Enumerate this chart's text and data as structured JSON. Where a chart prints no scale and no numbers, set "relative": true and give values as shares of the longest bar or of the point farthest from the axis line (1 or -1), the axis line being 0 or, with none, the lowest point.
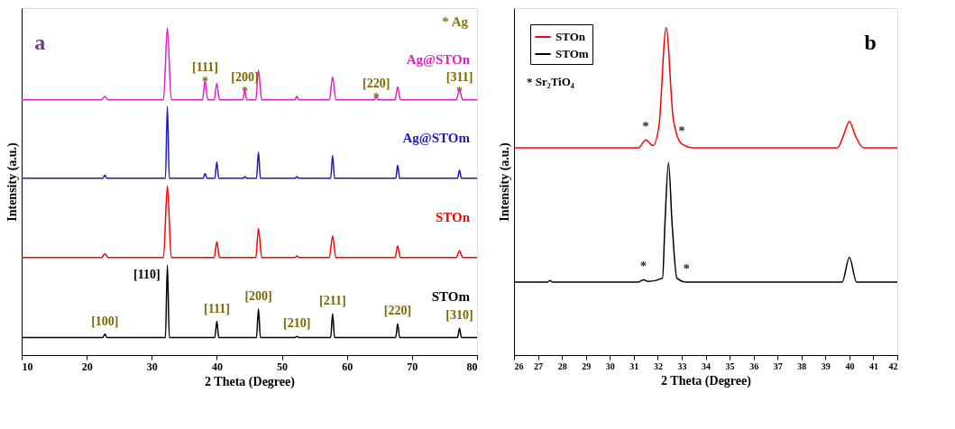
{
  "chart_data": [
    {
      "type": "line",
      "title": "a",
      "xlabel": "2 Theta (Degree)",
      "ylabel": "Intensity (a.u.)",
      "relative": true,
      "legend": false,
      "tick_labels": "x",
      "grid": false,
      "xlim": [
        10,
        80
      ],
      "xticks": [
        10,
        20,
        30,
        40,
        50,
        60,
        70,
        80
      ],
      "series": [
        {
          "name": "Ag@STOn",
          "color": "#e020c0",
          "x": [
            10,
            22.3,
            22.8,
            23.3,
            31.8,
            32.4,
            33.0,
            37.8,
            38.2,
            38.6,
            39.6,
            40.0,
            40.4,
            44.0,
            44.3,
            44.6,
            46.0,
            46.4,
            46.9,
            52.0,
            52.3,
            52.6,
            57.3,
            57.8,
            58.3,
            64.2,
            64.5,
            64.8,
            67.4,
            67.8,
            68.2,
            76.8,
            77.3,
            77.8,
            80
          ],
          "values": [
            0.78,
            0.78,
            0.79,
            0.78,
            0.78,
            1.0,
            0.78,
            0.78,
            0.84,
            0.78,
            0.78,
            0.83,
            0.78,
            0.78,
            0.81,
            0.78,
            0.78,
            0.87,
            0.78,
            0.78,
            0.79,
            0.78,
            0.78,
            0.85,
            0.78,
            0.78,
            0.79,
            0.78,
            0.78,
            0.82,
            0.78,
            0.78,
            0.81,
            0.78,
            0.78
          ]
        },
        {
          "name": "Ag@STOm",
          "color": "#1a1ac0",
          "x": [
            10,
            22.5,
            22.8,
            23.1,
            32.1,
            32.4,
            32.7,
            37.9,
            38.2,
            38.5,
            39.7,
            40.0,
            40.3,
            44.0,
            44.3,
            44.6,
            46.1,
            46.4,
            46.7,
            52.0,
            52.3,
            52.6,
            57.5,
            57.8,
            58.1,
            67.5,
            67.8,
            68.1,
            77.0,
            77.3,
            77.6,
            80
          ],
          "values": [
            0.54,
            0.54,
            0.55,
            0.54,
            0.54,
            0.76,
            0.54,
            0.54,
            0.555,
            0.54,
            0.54,
            0.59,
            0.54,
            0.54,
            0.545,
            0.54,
            0.54,
            0.62,
            0.54,
            0.54,
            0.545,
            0.54,
            0.54,
            0.61,
            0.54,
            0.54,
            0.58,
            0.54,
            0.54,
            0.565,
            0.54,
            0.54
          ]
        },
        {
          "name": "STOn",
          "color": "#ff0000",
          "x": [
            10,
            22.3,
            22.8,
            23.3,
            31.8,
            32.4,
            33.0,
            39.6,
            40.0,
            40.4,
            46.0,
            46.4,
            46.9,
            52.0,
            52.3,
            52.6,
            57.3,
            57.8,
            58.3,
            67.4,
            67.8,
            68.2,
            76.8,
            77.3,
            77.8,
            80
          ],
          "values": [
            0.298,
            0.298,
            0.31,
            0.298,
            0.298,
            0.517,
            0.298,
            0.298,
            0.346,
            0.298,
            0.298,
            0.387,
            0.298,
            0.298,
            0.303,
            0.298,
            0.298,
            0.364,
            0.298,
            0.298,
            0.334,
            0.298,
            0.298,
            0.319,
            0.298,
            0.298
          ]
        },
        {
          "name": "STOm",
          "color": "#000000",
          "x": [
            10,
            22.5,
            22.8,
            23.1,
            32.1,
            32.4,
            32.7,
            39.7,
            40.0,
            40.3,
            46.1,
            46.4,
            46.7,
            52.0,
            52.3,
            52.6,
            57.5,
            57.8,
            58.1,
            67.5,
            67.8,
            68.1,
            77.0,
            77.3,
            77.6,
            80
          ],
          "values": [
            0.054,
            0.054,
            0.064,
            0.054,
            0.054,
            0.275,
            0.054,
            0.054,
            0.103,
            0.054,
            0.054,
            0.141,
            0.054,
            0.054,
            0.057,
            0.054,
            0.054,
            0.126,
            0.054,
            0.054,
            0.096,
            0.054,
            0.054,
            0.082,
            0.054,
            0.054
          ]
        }
      ],
      "annotations": [
        "* Ag",
        {
          "text": "[111]\n*",
          "x": 38.2,
          "y": 0.84
        },
        {
          "text": "[200]\n*",
          "x": 44.3,
          "y": 0.81
        },
        {
          "text": "[220]\n*",
          "x": 64.5,
          "y": 0.79
        },
        {
          "text": "[311]\n*",
          "x": 77.3,
          "y": 0.81
        },
        {
          "text": "[100]",
          "x": 22.8,
          "y": 0.064
        },
        {
          "text": "[110]",
          "x": 32.4,
          "y": 0.275
        },
        {
          "text": "[111]",
          "x": 40.0,
          "y": 0.103
        },
        {
          "text": "[200]",
          "x": 46.4,
          "y": 0.141
        },
        {
          "text": "[210]",
          "x": 52.3,
          "y": 0.057
        },
        {
          "text": "[211]",
          "x": 57.8,
          "y": 0.126
        },
        {
          "text": "[220]",
          "x": 67.8,
          "y": 0.096
        },
        {
          "text": "[310]",
          "x": 77.3,
          "y": 0.082
        }
      ]
    },
    {
      "type": "line",
      "title": "b",
      "xlabel": "2 Theta (Degree)",
      "ylabel": "Intensity (a.u.)",
      "relative": true,
      "legend": "top left",
      "tick_labels": "x",
      "grid": false,
      "xlim": [
        26,
        42
      ],
      "xticks": [
        26,
        27,
        28,
        29,
        30,
        31,
        32,
        33,
        34,
        35,
        36,
        37,
        38,
        39,
        40,
        41,
        42
      ],
      "series": [
        {
          "name": "STOn",
          "color": "#ff0000",
          "x": [
            26,
            31.2,
            31.5,
            31.8,
            32.05,
            32.35,
            32.65,
            33.0,
            33.5,
            39.5,
            39.75,
            40.0,
            40.25,
            40.6,
            42
          ],
          "values": [
            0.633,
            0.633,
            0.657,
            0.64,
            0.7,
            1.0,
            0.72,
            0.645,
            0.633,
            0.633,
            0.67,
            0.714,
            0.67,
            0.633,
            0.633
          ]
        },
        {
          "name": "STOm",
          "color": "#000000",
          "x": [
            26,
            27.4,
            27.5,
            27.6,
            31.2,
            31.4,
            31.6,
            32.2,
            32.3,
            32.45,
            32.6,
            32.8,
            33.2,
            39.7,
            40.0,
            40.3,
            42
          ],
          "values": [
            0.223,
            0.223,
            0.228,
            0.223,
            0.223,
            0.23,
            0.225,
            0.235,
            0.4,
            0.588,
            0.4,
            0.235,
            0.223,
            0.223,
            0.299,
            0.223,
            0.223
          ]
        }
      ],
      "annotations": [
        "* Sr₂TiO₄",
        {
          "text": "*",
          "x": 31.5,
          "y": 0.657
        },
        {
          "text": "*",
          "x": 33.0,
          "y": 0.645
        },
        {
          "text": "*",
          "x": 31.4,
          "y": 0.23
        },
        {
          "text": "*",
          "x": 33.2,
          "y": 0.223
        }
      ]
    }
  ]
}
